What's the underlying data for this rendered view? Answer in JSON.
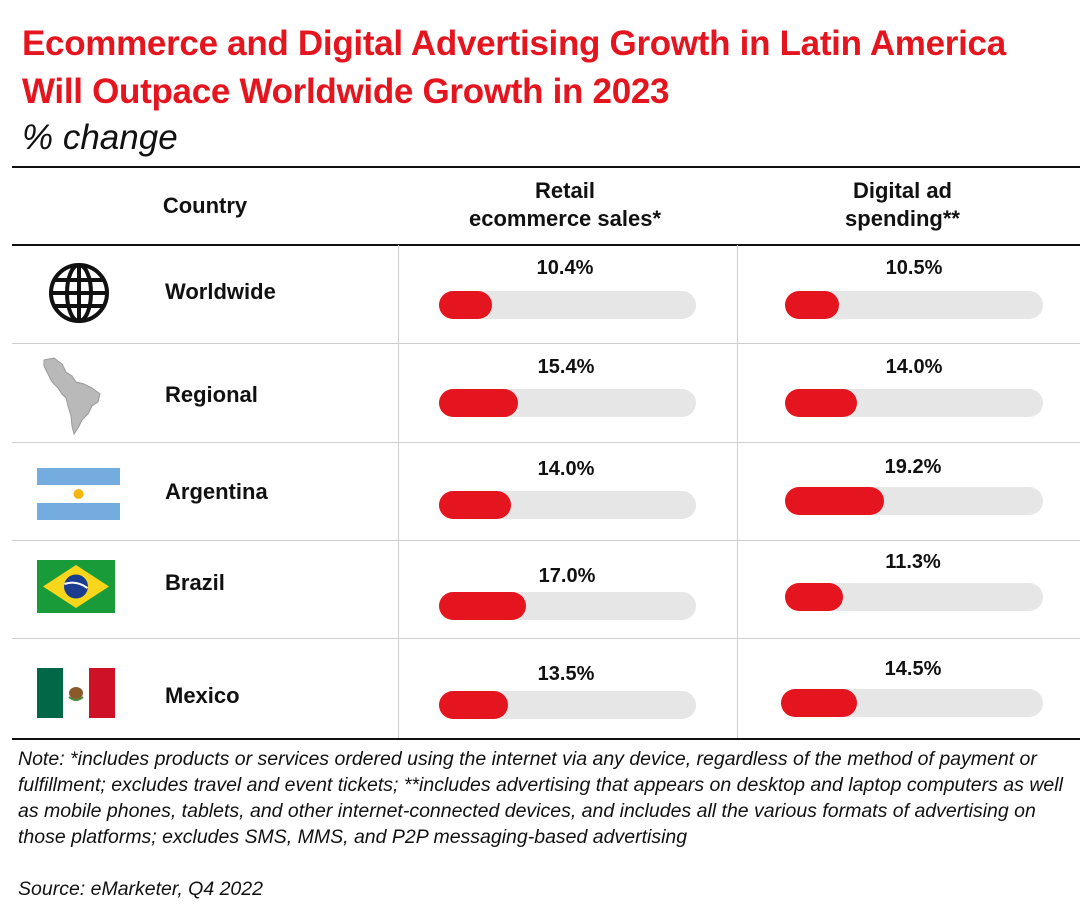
{
  "chart_data": {
    "type": "table",
    "title": "Ecommerce and Digital Advertising Growth in Latin America Will Outpace Worldwide Growth in 2023",
    "subtitle": "% change",
    "column_headers": {
      "country": "Country",
      "retail": [
        "Retail",
        "ecommerce sales*"
      ],
      "digital": [
        "Digital ad",
        "spending**"
      ]
    },
    "scale_max": 50,
    "rows": [
      {
        "country": "Worldwide",
        "icon": "globe-icon",
        "retail": 10.4,
        "retail_label": "10.4%",
        "digital": 10.5,
        "digital_label": "10.5%"
      },
      {
        "country": "Regional",
        "icon": "latin-america-map-icon",
        "retail": 15.4,
        "retail_label": "15.4%",
        "digital": 14.0,
        "digital_label": "14.0%"
      },
      {
        "country": "Argentina",
        "icon": "argentina-flag-icon",
        "retail": 14.0,
        "retail_label": "14.0%",
        "digital": 19.2,
        "digital_label": "19.2%"
      },
      {
        "country": "Brazil",
        "icon": "brazil-flag-icon",
        "retail": 17.0,
        "retail_label": "17.0%",
        "digital": 11.3,
        "digital_label": "11.3%"
      },
      {
        "country": "Mexico",
        "icon": "mexico-flag-icon",
        "retail": 13.5,
        "retail_label": "13.5%",
        "digital": 14.5,
        "digital_label": "14.5%"
      }
    ],
    "colors": {
      "accent": "#e4151f",
      "track": "#e6e6e6"
    }
  },
  "footer": {
    "note": "Note: *includes products or services ordered using the internet via any device, regardless of the method of payment or fulfillment; excludes travel and event tickets; **includes advertising that appears on desktop and laptop computers as well as mobile phones, tablets, and other internet-connected devices, and includes all the various formats of advertising on those platforms; excludes SMS, MMS, and P2P messaging-based advertising",
    "source": "Source: eMarketer, Q4 2022"
  }
}
